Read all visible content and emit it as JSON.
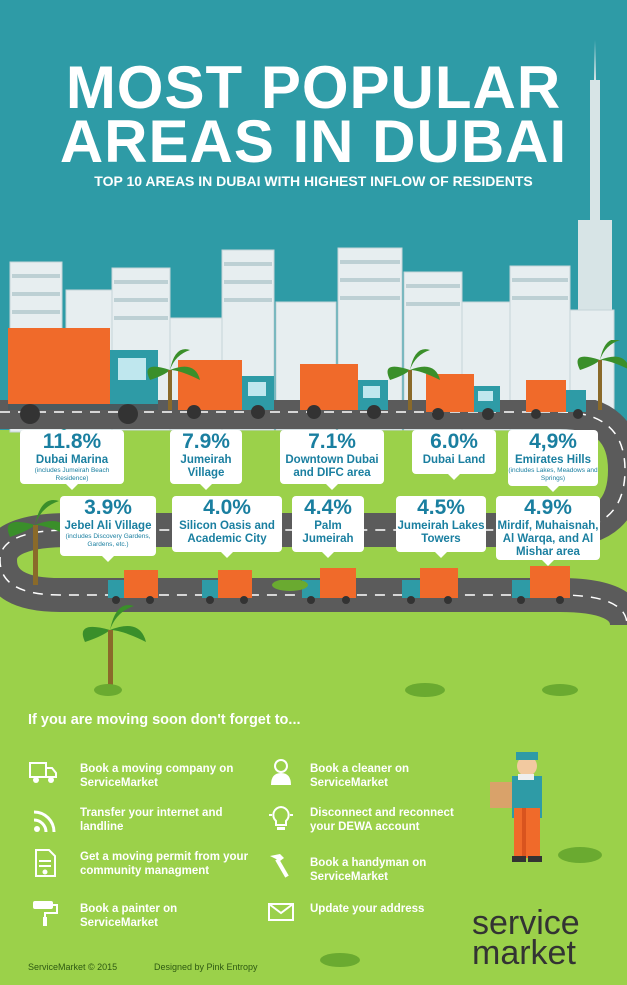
{
  "title_line1": "MOST POPULAR",
  "title_line2": "AREAS IN DUBAI",
  "subtitle": "TOP 10 AREAS IN DUBAI WITH HIGHEST INFLOW OF RESIDENTS",
  "areas": [
    {
      "pct": "11.8%",
      "name": "Dubai Marina",
      "note": "(includes Jumeirah Beach Residence)"
    },
    {
      "pct": "7.9%",
      "name": "Jumeirah Village",
      "note": ""
    },
    {
      "pct": "7.1%",
      "name": "Downtown Dubai and DIFC area",
      "note": ""
    },
    {
      "pct": "6.0%",
      "name": "Dubai Land",
      "note": ""
    },
    {
      "pct": "4,9%",
      "name": "Emirates Hills",
      "note": "(includes Lakes, Meadows and Springs)"
    },
    {
      "pct": "3.9%",
      "name": "Jebel Ali Village",
      "note": "(includes Discovery Gardens, Gardens, etc.)"
    },
    {
      "pct": "4.0%",
      "name": "Silicon Oasis and Academic City",
      "note": ""
    },
    {
      "pct": "4.4%",
      "name": "Palm Jumeirah",
      "note": ""
    },
    {
      "pct": "4.5%",
      "name": "Jumeirah Lakes Towers",
      "note": ""
    },
    {
      "pct": "4.9%",
      "name": "Mirdif, Muhaisnah, Al Warqa, and Al Mishar area",
      "note": ""
    }
  ],
  "reminder_heading": "If you are moving soon don't forget to...",
  "tasks": [
    {
      "text": "Book a moving company on ServiceMarket",
      "icon": "truck-icon"
    },
    {
      "text": "Transfer your internet and landline",
      "icon": "wifi-icon"
    },
    {
      "text": "Get a moving permit from your community managment",
      "icon": "document-icon"
    },
    {
      "text": "Book a painter on ServiceMarket",
      "icon": "paint-roller-icon"
    },
    {
      "text": "Book a cleaner on ServiceMarket",
      "icon": "cleaner-icon"
    },
    {
      "text": "Disconnect and reconnect your DEWA account",
      "icon": "lightbulb-icon"
    },
    {
      "text": "Book a handyman on ServiceMarket",
      "icon": "hammer-icon"
    },
    {
      "text": "Update your address",
      "icon": "envelope-icon"
    }
  ],
  "footer": {
    "copyright": "ServiceMarket © 2015",
    "credit": "Designed by Pink Entropy"
  },
  "brand": {
    "line1": "service",
    "line2": "market"
  },
  "colors": {
    "sky": "#2e9ba6",
    "grass": "#9bd14a",
    "road": "#5b5b5b",
    "truck_box": "#f06a2a",
    "label_text": "#1a7fa0"
  }
}
